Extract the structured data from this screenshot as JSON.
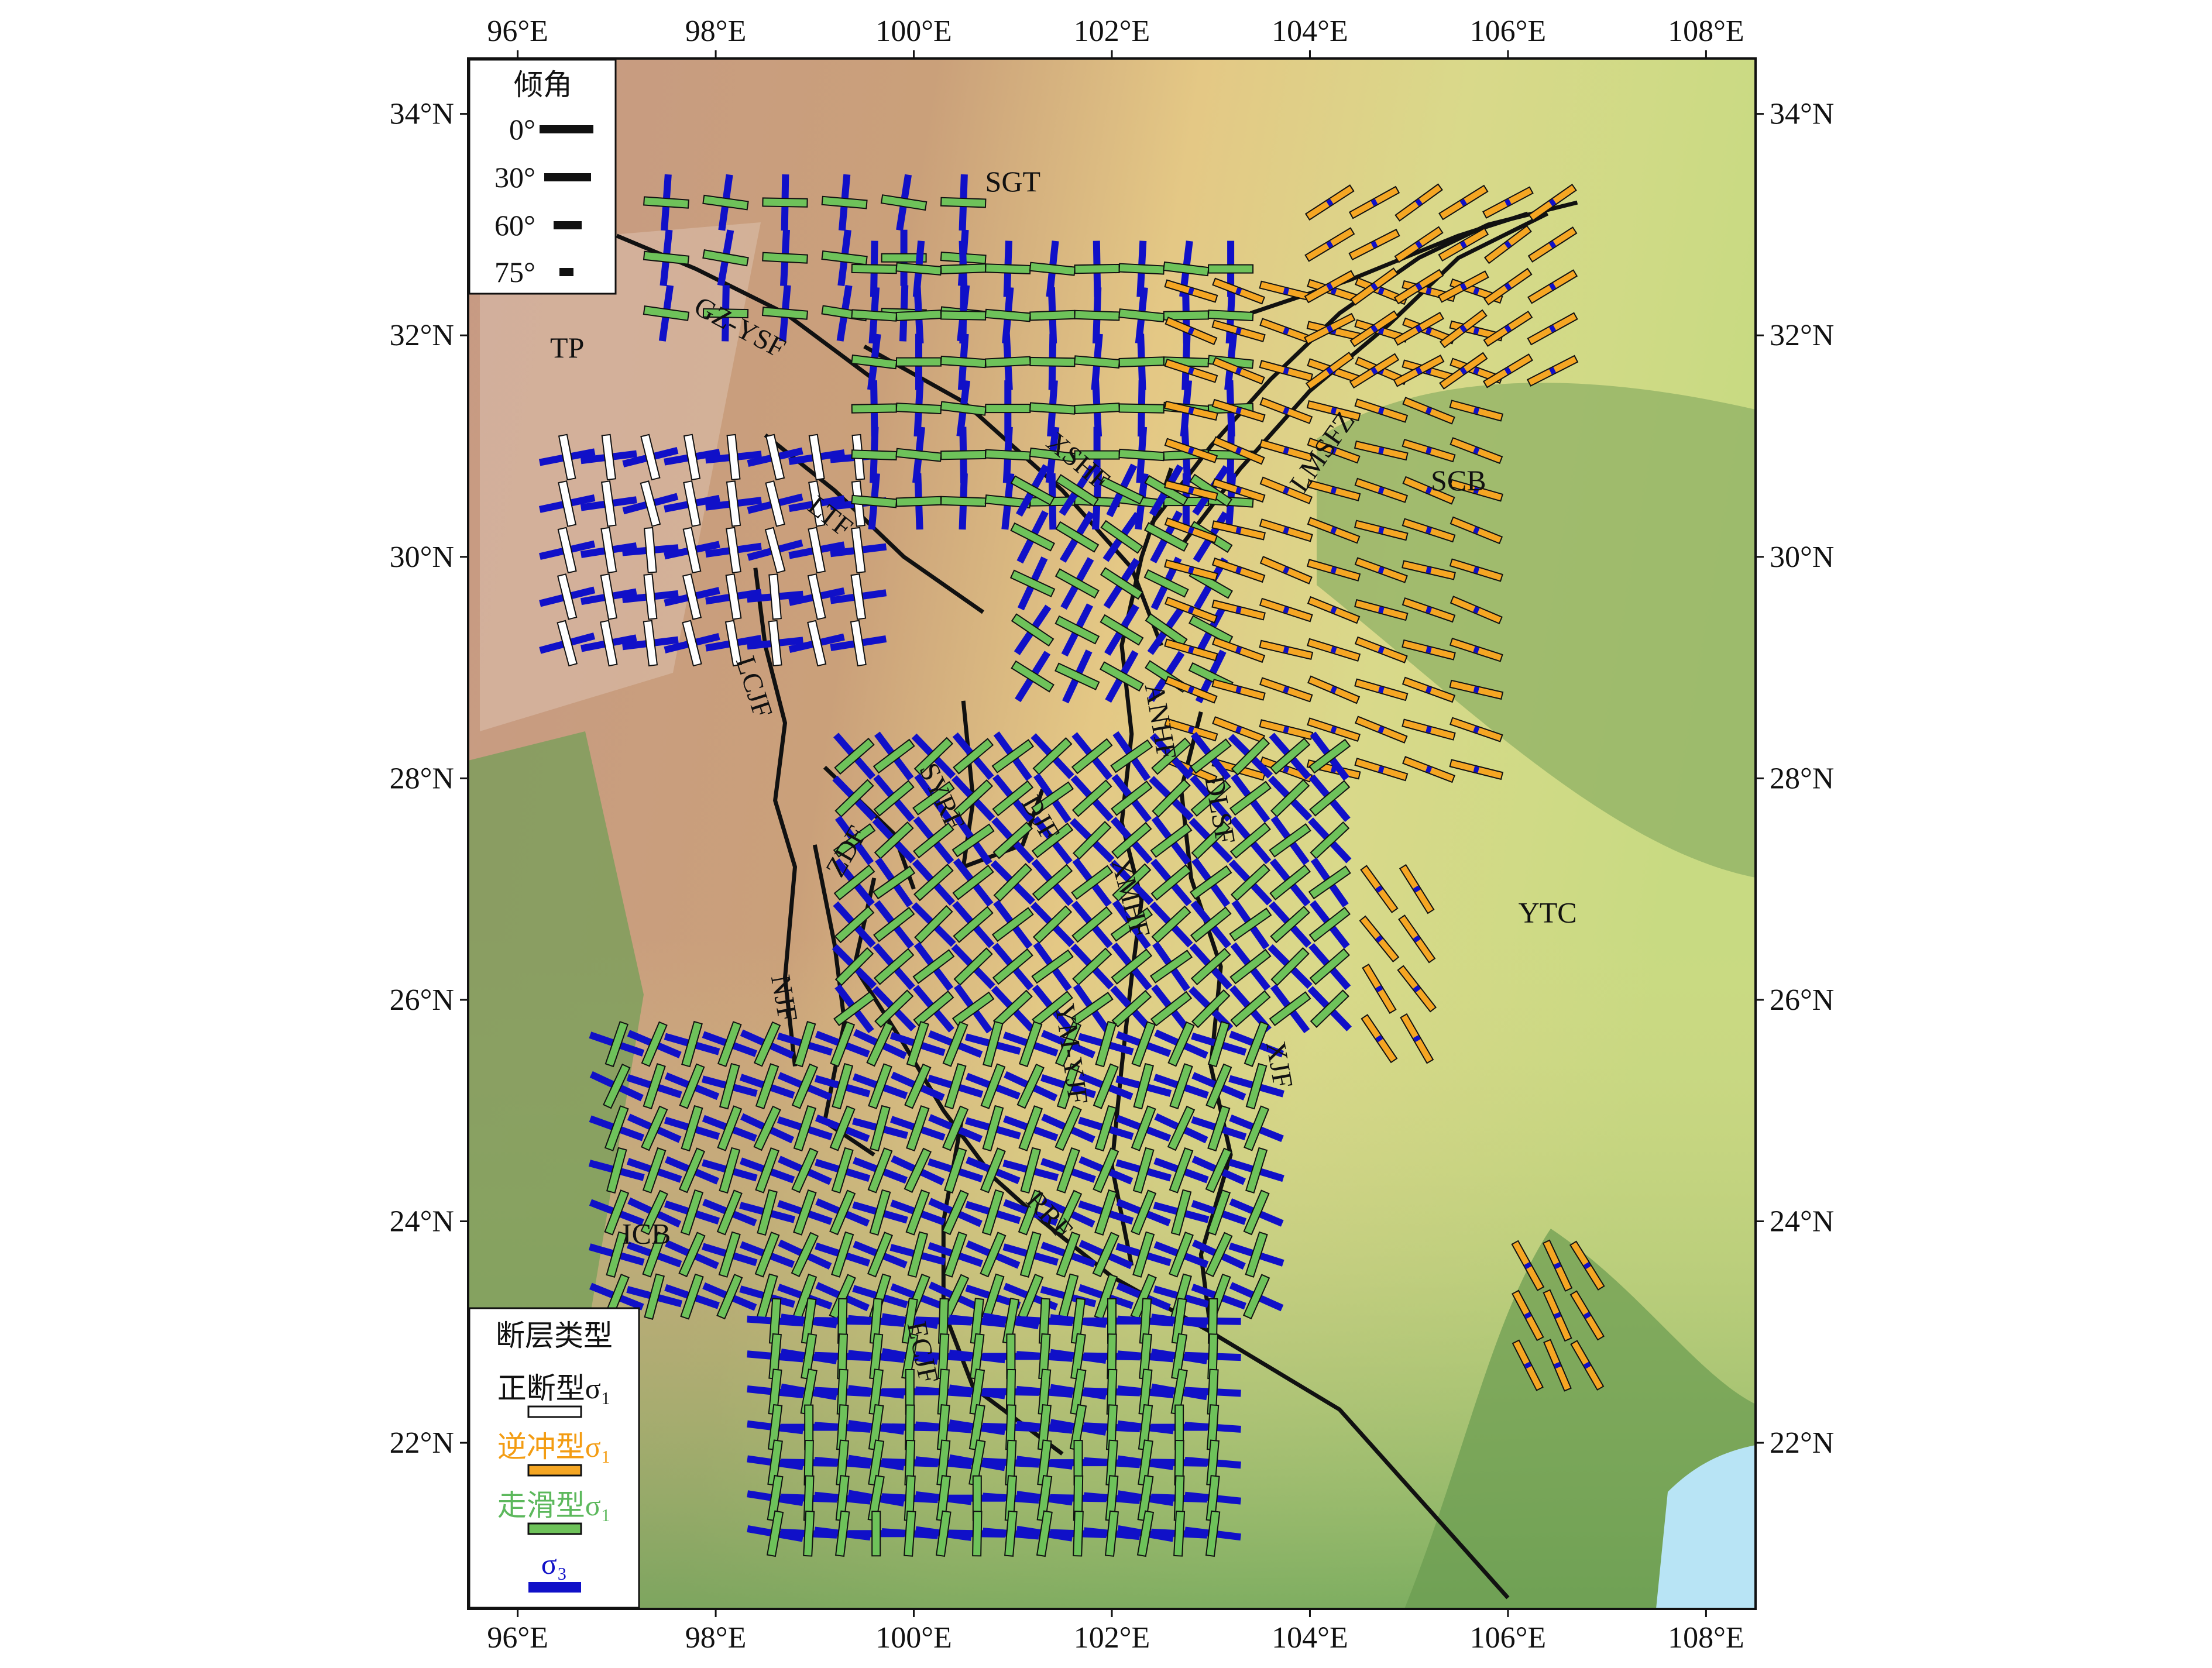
{
  "map": {
    "lon_range": [
      95.5,
      108.5
    ],
    "lat_range": [
      20.5,
      34.5
    ],
    "x_ticks": [
      {
        "lon": 96,
        "label": "96°E"
      },
      {
        "lon": 98,
        "label": "98°E"
      },
      {
        "lon": 100,
        "label": "100°E"
      },
      {
        "lon": 102,
        "label": "102°E"
      },
      {
        "lon": 104,
        "label": "104°E"
      },
      {
        "lon": 106,
        "label": "106°E"
      },
      {
        "lon": 108,
        "label": "108°E"
      }
    ],
    "y_ticks": [
      {
        "lat": 34,
        "label": "34°N"
      },
      {
        "lat": 32,
        "label": "32°N"
      },
      {
        "lat": 30,
        "label": "30°N"
      },
      {
        "lat": 28,
        "label": "28°N"
      },
      {
        "lat": 26,
        "label": "26°N"
      },
      {
        "lat": 24,
        "label": "24°N"
      },
      {
        "lat": 22,
        "label": "22°N"
      }
    ],
    "colors": {
      "normal": "#ffffff",
      "thrust": "#f5a623",
      "strike_slip": "#6ec25a",
      "sigma3": "#1010c8",
      "fault_line": "#111111",
      "sea": "#b8e4f5"
    },
    "regions": [
      {
        "name": "TP",
        "lon": 96.5,
        "lat": 31.8
      },
      {
        "name": "SGT",
        "lon": 101.0,
        "lat": 33.3
      },
      {
        "name": "SCB",
        "lon": 105.5,
        "lat": 30.6
      },
      {
        "name": "YTC",
        "lon": 106.4,
        "lat": 26.7
      },
      {
        "name": "ICB",
        "lon": 97.3,
        "lat": 23.8
      }
    ],
    "fault_labels": [
      {
        "name": "GZ-YSF",
        "lon": 98.2,
        "lat": 32.0,
        "rot": 28
      },
      {
        "name": "XSHF",
        "lon": 101.6,
        "lat": 30.8,
        "rot": 40
      },
      {
        "name": "LTF",
        "lon": 99.1,
        "lat": 30.3,
        "rot": 38
      },
      {
        "name": "LMSFZ",
        "lon": 104.2,
        "lat": 30.9,
        "rot": -55
      },
      {
        "name": "LCJF",
        "lon": 98.3,
        "lat": 28.8,
        "rot": 72
      },
      {
        "name": "SYRF",
        "lon": 100.2,
        "lat": 27.8,
        "rot": 65
      },
      {
        "name": "ZDF",
        "lon": 99.4,
        "lat": 27.3,
        "rot": -60
      },
      {
        "name": "DJF",
        "lon": 101.2,
        "lat": 27.6,
        "rot": 60
      },
      {
        "name": "ANHF",
        "lon": 102.4,
        "lat": 28.5,
        "rot": 80
      },
      {
        "name": "DLSF",
        "lon": 103.0,
        "lat": 27.7,
        "rot": 80
      },
      {
        "name": "XMHF",
        "lon": 102.1,
        "lat": 26.9,
        "rot": 75
      },
      {
        "name": "NJF",
        "lon": 98.6,
        "lat": 26.0,
        "rot": 80
      },
      {
        "name": "YM-YJF",
        "lon": 101.5,
        "lat": 25.5,
        "rot": 82
      },
      {
        "name": "XJF",
        "lon": 103.6,
        "lat": 25.4,
        "rot": 80
      },
      {
        "name": "RRF",
        "lon": 101.3,
        "lat": 24.0,
        "rot": 48
      },
      {
        "name": "ECJF",
        "lon": 100.0,
        "lat": 22.8,
        "rot": 78
      }
    ],
    "faults": [
      [
        [
          97.0,
          32.9
        ],
        [
          97.8,
          32.6
        ],
        [
          98.7,
          32.2
        ],
        [
          99.6,
          31.6
        ]
      ],
      [
        [
          99.5,
          31.9
        ],
        [
          100.5,
          31.4
        ],
        [
          101.5,
          30.6
        ],
        [
          102.2,
          29.9
        ],
        [
          102.5,
          29.2
        ]
      ],
      [
        [
          98.5,
          31.1
        ],
        [
          99.2,
          30.6
        ],
        [
          99.9,
          30.0
        ],
        [
          100.7,
          29.5
        ]
      ],
      [
        [
          98.4,
          29.9
        ],
        [
          98.5,
          29.2
        ],
        [
          98.7,
          28.5
        ],
        [
          98.6,
          27.8
        ],
        [
          98.8,
          27.2
        ],
        [
          98.7,
          26.2
        ],
        [
          98.8,
          25.4
        ]
      ],
      [
        [
          99.1,
          28.1
        ],
        [
          99.8,
          27.5
        ],
        [
          100.0,
          27.0
        ]
      ],
      [
        [
          99.0,
          27.4
        ],
        [
          99.2,
          26.5
        ],
        [
          99.3,
          25.8
        ],
        [
          99.1,
          24.9
        ],
        [
          99.6,
          24.6
        ]
      ],
      [
        [
          100.5,
          28.7
        ],
        [
          100.6,
          27.8
        ],
        [
          100.5,
          27.2
        ],
        [
          101.1,
          27.4
        ],
        [
          101.3,
          27.9
        ]
      ],
      [
        [
          102.6,
          30.8
        ],
        [
          102.3,
          30.0
        ],
        [
          102.1,
          29.2
        ],
        [
          102.2,
          28.4
        ],
        [
          102.1,
          27.6
        ],
        [
          102.3,
          26.9
        ],
        [
          102.2,
          26.2
        ],
        [
          102.1,
          25.4
        ],
        [
          102.0,
          24.5
        ],
        [
          102.2,
          23.6
        ]
      ],
      [
        [
          102.9,
          28.6
        ],
        [
          102.7,
          27.9
        ],
        [
          102.8,
          27.1
        ],
        [
          103.1,
          26.3
        ],
        [
          103.0,
          25.4
        ],
        [
          103.2,
          24.6
        ],
        [
          102.9,
          23.7
        ],
        [
          103.0,
          23.0
        ]
      ],
      [
        [
          99.6,
          27.1
        ],
        [
          99.4,
          26.3
        ],
        [
          99.9,
          25.6
        ],
        [
          100.3,
          25.0
        ],
        [
          100.8,
          24.4
        ],
        [
          101.3,
          24.0
        ],
        [
          102.0,
          23.5
        ],
        [
          103.0,
          23.0
        ],
        [
          104.3,
          22.3
        ],
        [
          105.2,
          21.4
        ],
        [
          106.0,
          20.6
        ]
      ],
      [
        [
          100.5,
          25.0
        ],
        [
          100.3,
          24.0
        ],
        [
          100.3,
          23.2
        ],
        [
          100.6,
          22.5
        ],
        [
          101.5,
          21.9
        ]
      ],
      [
        [
          102.4,
          30.3
        ],
        [
          103.0,
          31.0
        ],
        [
          103.6,
          31.6
        ],
        [
          104.3,
          32.2
        ],
        [
          105.1,
          32.7
        ],
        [
          105.8,
          33.0
        ],
        [
          106.7,
          33.2
        ]
      ],
      [
        [
          102.7,
          30.1
        ],
        [
          103.3,
          30.8
        ],
        [
          104.0,
          31.5
        ],
        [
          104.8,
          32.1
        ],
        [
          105.5,
          32.7
        ],
        [
          106.4,
          33.1
        ]
      ],
      [
        [
          103.4,
          32.2
        ],
        [
          104.4,
          32.5
        ],
        [
          105.5,
          32.9
        ],
        [
          106.2,
          33.1
        ]
      ]
    ],
    "zones": [
      {
        "lon": [
          96.5,
          99.5
        ],
        "lat": [
          29.2,
          30.9
        ],
        "dlon": 0.42,
        "dlat": 0.42,
        "rot": 80,
        "type": "normal",
        "dip": 30
      },
      {
        "lon": [
          97.5,
          101.0
        ],
        "lat": [
          32.1,
          33.2
        ],
        "dlon": 0.6,
        "dlat": 0.5,
        "rot": 5,
        "type": "strike_slip",
        "dip": 30
      },
      {
        "lon": [
          99.6,
          103.3
        ],
        "lat": [
          30.2,
          32.6
        ],
        "dlon": 0.45,
        "dlat": 0.42,
        "rot": 2,
        "type": "strike_slip",
        "dip": 30
      },
      {
        "lon": [
          101.2,
          103.2
        ],
        "lat": [
          28.8,
          30.6
        ],
        "dlon": 0.45,
        "dlat": 0.42,
        "rot": 30,
        "type": "strike_slip",
        "dip": 30
      },
      {
        "lon": [
          102.8,
          105.8
        ],
        "lat": [
          27.8,
          32.4
        ],
        "dlon": 0.48,
        "dlat": 0.36,
        "rot": 18,
        "type": "thrust",
        "dip": 30
      },
      {
        "lon": [
          104.2,
          106.6
        ],
        "lat": [
          31.5,
          33.2
        ],
        "dlon": 0.45,
        "dlat": 0.38,
        "rot": -32,
        "type": "thrust",
        "dip": 30
      },
      {
        "lon": [
          99.4,
          104.3
        ],
        "lat": [
          25.6,
          28.2
        ],
        "dlon": 0.4,
        "dlat": 0.38,
        "rot": -40,
        "type": "strike_slip",
        "dip": 30
      },
      {
        "lon": [
          97.0,
          103.6
        ],
        "lat": [
          23.2,
          25.6
        ],
        "dlon": 0.38,
        "dlat": 0.38,
        "rot": -70,
        "type": "strike_slip",
        "dip": 30
      },
      {
        "lon": [
          98.6,
          103.2
        ],
        "lat": [
          20.9,
          23.1
        ],
        "dlon": 0.34,
        "dlat": 0.32,
        "rot": -85,
        "type": "strike_slip",
        "dip": 30
      },
      {
        "lon": [
          104.7,
          105.4
        ],
        "lat": [
          25.3,
          27.0
        ],
        "dlon": 0.38,
        "dlat": 0.45,
        "rot": 55,
        "type": "thrust",
        "dip": 30
      },
      {
        "lon": [
          106.2,
          106.8
        ],
        "lat": [
          22.4,
          23.6
        ],
        "dlon": 0.3,
        "dlat": 0.45,
        "rot": 62,
        "type": "thrust",
        "dip": 30
      }
    ]
  },
  "legend_dip": {
    "title": "倾角",
    "items": [
      {
        "label": "0°",
        "dip": 0
      },
      {
        "label": "30°",
        "dip": 30
      },
      {
        "label": "60°",
        "dip": 60
      },
      {
        "label": "75°",
        "dip": 75
      }
    ]
  },
  "legend_fault": {
    "title": "断层类型",
    "items": [
      {
        "label": "正断型σ₁",
        "type": "normal",
        "color": "#111111"
      },
      {
        "label": "逆冲型σ₁",
        "type": "thrust",
        "color": "#f39c12"
      },
      {
        "label": "走滑型σ₁",
        "type": "strike_slip",
        "color": "#5cb85c"
      },
      {
        "label": "σ₃",
        "type": "sigma3",
        "color": "#1010c8"
      }
    ]
  }
}
